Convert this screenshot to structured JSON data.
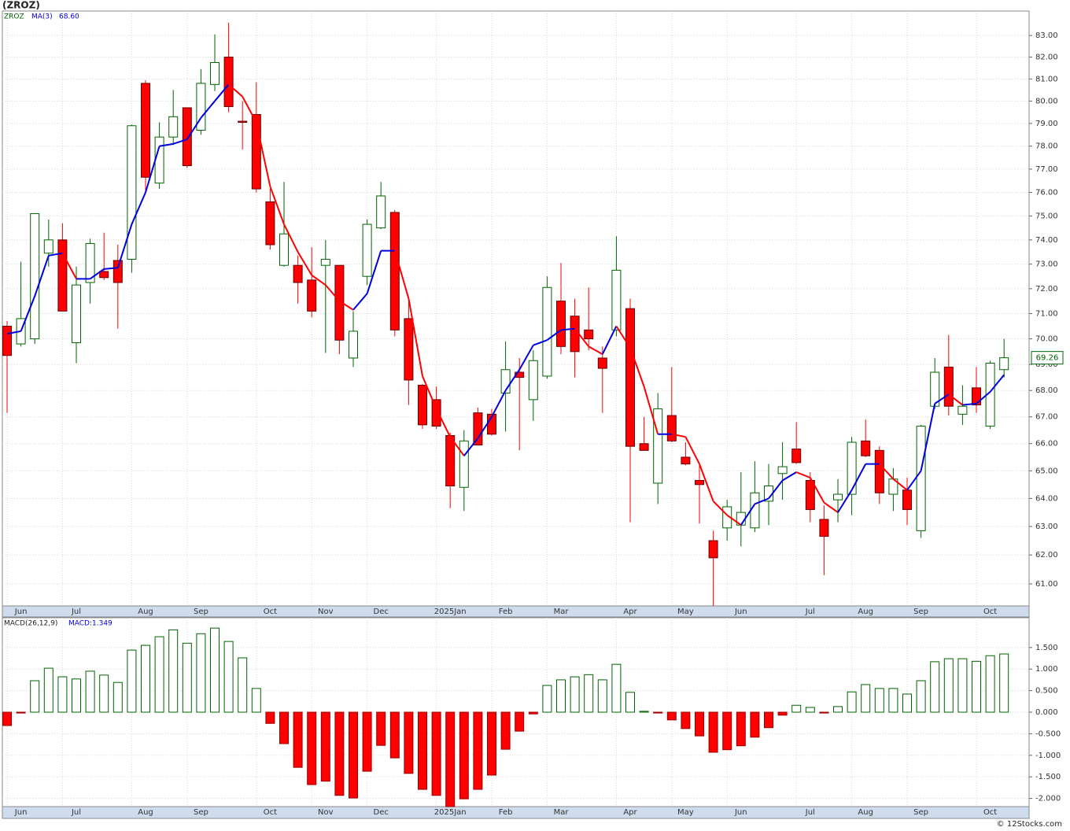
{
  "chart_data": [
    {
      "type": "candlestick",
      "title": "(ZROZ)",
      "symbol": "ZROZ",
      "log_scale": true,
      "grid": true,
      "up_color": "#006400",
      "down_color": "#ff0000",
      "categories": [
        null,
        "Jun",
        null,
        null,
        null,
        "Jul",
        null,
        null,
        null,
        null,
        "Aug",
        null,
        null,
        null,
        "Sep",
        null,
        null,
        null,
        null,
        "Oct",
        null,
        null,
        null,
        "Nov",
        null,
        null,
        null,
        "Dec",
        null,
        null,
        null,
        null,
        "2025Jan",
        null,
        null,
        null,
        "Feb",
        null,
        null,
        null,
        "Mar",
        null,
        null,
        null,
        null,
        "Apr",
        null,
        null,
        null,
        "May",
        null,
        null,
        null,
        "Jun",
        null,
        null,
        null,
        null,
        "Jul",
        null,
        null,
        null,
        "Aug",
        null,
        null,
        null,
        "Sep",
        null,
        null,
        null,
        null,
        "Oct",
        null
      ],
      "open": [
        70.5,
        69.8,
        70.0,
        73.45,
        74.0,
        69.85,
        72.25,
        72.7,
        73.15,
        73.2,
        80.8,
        76.4,
        78.4,
        79.7,
        78.7,
        80.75,
        82.0,
        79.1,
        79.4,
        75.6,
        72.95,
        72.95,
        72.35,
        72.95,
        72.95,
        69.25,
        72.5,
        74.5,
        75.15,
        70.8,
        68.2,
        67.65,
        66.3,
        64.4,
        67.15,
        67.1,
        67.9,
        68.7,
        67.65,
        68.55,
        71.5,
        70.9,
        70.35,
        69.25,
        70.35,
        71.2,
        66.0,
        64.55,
        67.05,
        65.5,
        64.65,
        62.5,
        62.95,
        63.05,
        62.95,
        63.9,
        64.9,
        65.8,
        64.65,
        63.25,
        63.95,
        64.15,
        66.1,
        65.75,
        64.15,
        64.3,
        62.85,
        67.4,
        68.9,
        67.1,
        68.1,
        66.65,
        68.8
      ],
      "high": [
        70.7,
        73.1,
        75.1,
        74.85,
        74.7,
        72.9,
        74.05,
        74.3,
        73.8,
        78.95,
        80.95,
        79.05,
        80.5,
        79.7,
        81.45,
        83.05,
        83.6,
        80.0,
        80.85,
        76.15,
        76.45,
        73.35,
        73.7,
        74.0,
        72.95,
        71.1,
        74.85,
        76.45,
        75.25,
        71.6,
        68.25,
        68.15,
        66.4,
        66.5,
        67.35,
        67.3,
        69.9,
        69.25,
        69.55,
        72.5,
        73.05,
        71.6,
        72.05,
        69.7,
        74.15,
        71.6,
        67.0,
        67.9,
        68.9,
        66.05,
        65.2,
        62.85,
        63.95,
        64.95,
        65.35,
        65.25,
        66.05,
        66.8,
        64.95,
        63.75,
        64.7,
        66.25,
        66.9,
        65.9,
        65.1,
        64.75,
        66.7,
        69.25,
        70.15,
        68.2,
        68.9,
        69.15,
        70.0
      ],
      "low": [
        67.15,
        69.7,
        69.8,
        72.9,
        71.1,
        69.05,
        71.4,
        72.35,
        70.4,
        72.65,
        76.0,
        76.15,
        78.05,
        77.05,
        78.5,
        80.45,
        79.5,
        77.85,
        76.0,
        73.6,
        72.9,
        71.4,
        70.85,
        69.45,
        69.4,
        68.9,
        72.15,
        74.45,
        70.1,
        67.45,
        66.55,
        66.55,
        63.65,
        63.55,
        65.95,
        66.3,
        66.45,
        65.75,
        66.85,
        68.45,
        69.4,
        68.5,
        69.55,
        67.15,
        70.1,
        63.15,
        65.75,
        63.8,
        66.05,
        65.2,
        63.1,
        60.25,
        62.5,
        62.3,
        62.8,
        63.05,
        63.95,
        65.25,
        63.15,
        61.3,
        63.15,
        63.4,
        65.5,
        63.8,
        63.55,
        63.05,
        62.6,
        67.3,
        67.05,
        66.7,
        67.15,
        66.55,
        68.5
      ],
      "close": [
        69.35,
        70.8,
        75.1,
        74.0,
        71.1,
        72.15,
        73.85,
        72.45,
        72.25,
        78.9,
        76.65,
        78.4,
        79.3,
        77.15,
        80.8,
        81.75,
        79.75,
        79.05,
        76.15,
        73.8,
        74.25,
        72.25,
        71.1,
        73.2,
        69.95,
        70.3,
        74.65,
        75.85,
        70.35,
        68.4,
        66.7,
        66.65,
        64.45,
        66.1,
        65.95,
        66.35,
        68.8,
        68.5,
        69.15,
        72.05,
        69.7,
        69.5,
        70.0,
        68.85,
        72.75,
        65.9,
        65.75,
        67.3,
        66.1,
        65.25,
        64.5,
        61.9,
        63.7,
        63.5,
        64.2,
        64.45,
        65.15,
        65.3,
        63.6,
        62.65,
        64.15,
        66.05,
        65.55,
        64.2,
        64.7,
        63.6,
        66.65,
        68.7,
        67.4,
        67.4,
        67.45,
        69.05,
        69.26
      ],
      "last_close_label": "69.26",
      "series": [
        {
          "name": "MA(3)",
          "rising_color": "#0000dd",
          "falling_color": "#ff0000",
          "last_value_label": "68.60",
          "values": [
            70.2,
            70.3,
            71.7,
            73.35,
            73.45,
            72.4,
            72.4,
            72.8,
            72.85,
            74.65,
            76.0,
            78.0,
            78.1,
            78.3,
            79.25,
            80.0,
            80.75,
            80.2,
            79.05,
            76.25,
            74.65,
            73.5,
            72.55,
            72.15,
            71.5,
            71.15,
            71.8,
            73.55,
            73.55,
            71.6,
            68.55,
            67.3,
            66.25,
            65.55,
            66.2,
            67.0,
            68.0,
            68.8,
            69.75,
            69.95,
            70.35,
            70.4,
            69.7,
            69.4,
            70.5,
            69.65,
            68.15,
            66.35,
            66.35,
            66.25,
            65.25,
            63.9,
            63.4,
            63.05,
            63.8,
            64.0,
            64.65,
            64.95,
            64.75,
            63.85,
            63.5,
            64.3,
            65.25,
            65.25,
            64.7,
            64.3,
            65.0,
            67.5,
            67.85,
            67.45,
            67.5,
            67.95,
            68.6
          ]
        }
      ],
      "ylim": [
        60.25,
        84.15
      ],
      "yticks": [
        {
          "value": 61,
          "label": "61.00"
        },
        {
          "value": 62,
          "label": "62.00"
        },
        {
          "value": 63,
          "label": "63.00"
        },
        {
          "value": 64,
          "label": "64.00"
        },
        {
          "value": 65,
          "label": "65.00"
        },
        {
          "value": 66,
          "label": "66.00"
        },
        {
          "value": 67,
          "label": "67.00"
        },
        {
          "value": 68,
          "label": "68.00"
        },
        {
          "value": 69,
          "label": "69.00"
        },
        {
          "value": 70,
          "label": "70.00"
        },
        {
          "value": 71,
          "label": "71.00"
        },
        {
          "value": 72,
          "label": "72.00"
        },
        {
          "value": 73,
          "label": "73.00"
        },
        {
          "value": 74,
          "label": "74.00"
        },
        {
          "value": 75,
          "label": "75.00"
        },
        {
          "value": 76,
          "label": "76.00"
        },
        {
          "value": 77,
          "label": "77.00"
        },
        {
          "value": 78,
          "label": "78.00"
        },
        {
          "value": 79,
          "label": "79.00"
        },
        {
          "value": 80,
          "label": "80.00"
        },
        {
          "value": 81,
          "label": "81.00"
        },
        {
          "value": 82,
          "label": "82.00"
        },
        {
          "value": 83,
          "label": "83.00"
        }
      ]
    },
    {
      "type": "bar",
      "title": "MACD(26,12,9)",
      "legend": "MACD:1.349",
      "positive_color": "#006400",
      "negative_color": "#ff0000",
      "values": [
        -0.31,
        -0.02,
        0.73,
        1.02,
        0.82,
        0.77,
        0.95,
        0.86,
        0.69,
        1.44,
        1.55,
        1.75,
        1.91,
        1.6,
        1.82,
        1.95,
        1.64,
        1.26,
        0.55,
        -0.26,
        -0.73,
        -1.28,
        -1.68,
        -1.6,
        -1.93,
        -1.99,
        -1.37,
        -0.77,
        -1.06,
        -1.42,
        -1.79,
        -1.93,
        -2.19,
        -2.01,
        -1.79,
        -1.46,
        -0.86,
        -0.44,
        -0.04,
        0.62,
        0.75,
        0.82,
        0.87,
        0.75,
        1.11,
        0.46,
        0.02,
        -0.02,
        -0.18,
        -0.38,
        -0.55,
        -0.93,
        -0.87,
        -0.78,
        -0.58,
        -0.36,
        -0.07,
        0.16,
        0.11,
        -0.02,
        0.13,
        0.47,
        0.64,
        0.55,
        0.55,
        0.42,
        0.73,
        1.17,
        1.24,
        1.24,
        1.18,
        1.31,
        1.35
      ],
      "ylim": [
        -2.19,
        2.19
      ],
      "yticks": [
        {
          "value": -2,
          "label": "-2.000"
        },
        {
          "value": -1.5,
          "label": "-1.500"
        },
        {
          "value": -1,
          "label": "-1.000"
        },
        {
          "value": -0.5,
          "label": "-0.500"
        },
        {
          "value": 0,
          "label": "0.000"
        },
        {
          "value": 0.5,
          "label": "0.500"
        },
        {
          "value": 1,
          "label": "1.000"
        },
        {
          "value": 1.5,
          "label": "1.500"
        }
      ]
    }
  ],
  "footer": "© 12Stocks.com"
}
